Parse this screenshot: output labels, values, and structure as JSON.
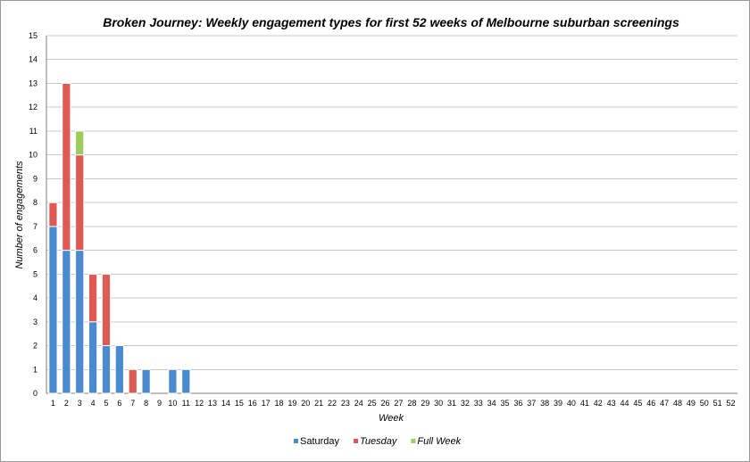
{
  "chart_data": {
    "type": "bar",
    "stacked": true,
    "title": "Broken Journey: Weekly engagement types for first 52 weeks of Melbourne suburban screenings",
    "xlabel": "Week",
    "ylabel": "Number of engagements",
    "ylim": [
      0,
      15
    ],
    "yticks": [
      0,
      1,
      2,
      3,
      4,
      5,
      6,
      7,
      8,
      9,
      10,
      11,
      12,
      13,
      14,
      15
    ],
    "grid": true,
    "legend_position": "bottom",
    "categories": [
      "1",
      "2",
      "3",
      "4",
      "5",
      "6",
      "7",
      "8",
      "9",
      "10",
      "11",
      "12",
      "13",
      "14",
      "15",
      "16",
      "17",
      "18",
      "19",
      "20",
      "21",
      "22",
      "23",
      "24",
      "25",
      "26",
      "27",
      "28",
      "29",
      "30",
      "31",
      "32",
      "33",
      "34",
      "35",
      "36",
      "37",
      "38",
      "39",
      "40",
      "41",
      "42",
      "43",
      "44",
      "45",
      "46",
      "47",
      "48",
      "49",
      "50",
      "51",
      "52"
    ],
    "series": [
      {
        "name": "Saturday",
        "color": "#4a8bd0",
        "values": [
          7,
          6,
          6,
          3,
          2,
          2,
          0,
          1,
          0,
          1,
          1,
          0,
          0,
          0,
          0,
          0,
          0,
          0,
          0,
          0,
          0,
          0,
          0,
          0,
          0,
          0,
          0,
          0,
          0,
          0,
          0,
          0,
          0,
          0,
          0,
          0,
          0,
          0,
          0,
          0,
          0,
          0,
          0,
          0,
          0,
          0,
          0,
          0,
          0,
          0,
          0,
          0
        ]
      },
      {
        "name": "Tuesday",
        "color": "#e05a55",
        "italic": true,
        "values": [
          1,
          7,
          4,
          2,
          3,
          0,
          1,
          0,
          0,
          0,
          0,
          0,
          0,
          0,
          0,
          0,
          0,
          0,
          0,
          0,
          0,
          0,
          0,
          0,
          0,
          0,
          0,
          0,
          0,
          0,
          0,
          0,
          0,
          0,
          0,
          0,
          0,
          0,
          0,
          0,
          0,
          0,
          0,
          0,
          0,
          0,
          0,
          0,
          0,
          0,
          0,
          0
        ]
      },
      {
        "name": "Full Week",
        "color": "#9ccc5a",
        "italic": true,
        "values": [
          0,
          0,
          1,
          0,
          0,
          0,
          0,
          0,
          0,
          0,
          0,
          0,
          0,
          0,
          0,
          0,
          0,
          0,
          0,
          0,
          0,
          0,
          0,
          0,
          0,
          0,
          0,
          0,
          0,
          0,
          0,
          0,
          0,
          0,
          0,
          0,
          0,
          0,
          0,
          0,
          0,
          0,
          0,
          0,
          0,
          0,
          0,
          0,
          0,
          0,
          0,
          0
        ]
      }
    ]
  }
}
